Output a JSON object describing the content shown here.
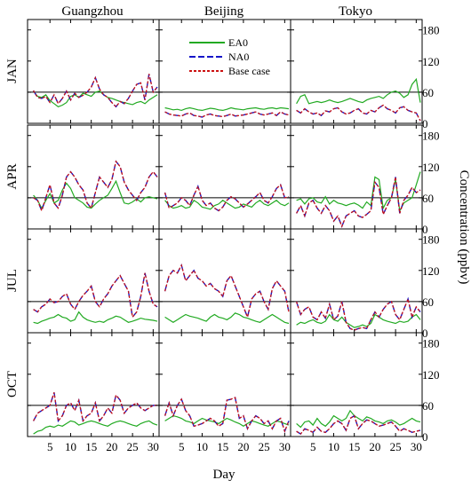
{
  "chart_data": {
    "type": "line",
    "columns": [
      "Guangzhou",
      "Beijing",
      "Tokyo"
    ],
    "rows": [
      "JAN",
      "APR",
      "JUL",
      "OCT"
    ],
    "xlabel": "Day",
    "ylabel": "Concentration (ppbv)",
    "xticks": [
      5,
      10,
      15,
      20,
      25,
      30
    ],
    "yticks": [
      0,
      60,
      120,
      180
    ],
    "xlim": [
      0,
      31
    ],
    "ylim": [
      0,
      200
    ],
    "reference_line": 60,
    "legend": {
      "placement": "top, in JAN–Beijing panel",
      "entries": [
        "EA0",
        "NA0",
        "Base case"
      ]
    },
    "series_styles": [
      {
        "name": "EA0",
        "color": "#22aa22",
        "dash": ""
      },
      {
        "name": "NA0",
        "color": "#1515c8",
        "dash": "7,3"
      },
      {
        "name": "Base case",
        "color": "#cc1111",
        "dash": "3,2"
      }
    ],
    "panels": [
      {
        "row": "JAN",
        "col": "Guangzhou",
        "ea0": [
          62,
          52,
          50,
          55,
          44,
          38,
          32,
          35,
          40,
          52,
          55,
          50,
          58,
          55,
          52,
          60,
          62,
          55,
          50,
          48,
          45,
          42,
          40,
          38,
          36,
          40,
          42,
          38,
          45,
          50,
          55
        ],
        "base": [
          63,
          50,
          48,
          52,
          40,
          55,
          38,
          48,
          62,
          45,
          58,
          50,
          54,
          60,
          70,
          88,
          66,
          55,
          50,
          40,
          32,
          42,
          38,
          48,
          62,
          75,
          78,
          45,
          95,
          60,
          70
        ]
      },
      {
        "row": "JAN",
        "col": "Beijing",
        "ea0": [
          30,
          28,
          26,
          27,
          25,
          28,
          30,
          28,
          26,
          25,
          27,
          29,
          28,
          26,
          25,
          27,
          30,
          28,
          27,
          26,
          28,
          29,
          30,
          28,
          27,
          29,
          30,
          28,
          30,
          29,
          28
        ],
        "base": [
          22,
          18,
          16,
          15,
          14,
          18,
          20,
          15,
          14,
          12,
          16,
          18,
          15,
          14,
          13,
          15,
          18,
          14,
          15,
          16,
          18,
          20,
          22,
          18,
          16,
          18,
          20,
          15,
          22,
          18,
          16
        ]
      },
      {
        "row": "JAN",
        "col": "Tokyo",
        "ea0": [
          38,
          52,
          55,
          38,
          40,
          42,
          40,
          42,
          45,
          42,
          40,
          42,
          45,
          48,
          45,
          42,
          40,
          45,
          48,
          50,
          52,
          48,
          55,
          60,
          62,
          58,
          50,
          55,
          75,
          85,
          40
        ],
        "base": [
          25,
          20,
          28,
          22,
          18,
          20,
          15,
          24,
          22,
          28,
          30,
          22,
          18,
          20,
          25,
          28,
          20,
          18,
          25,
          22,
          30,
          35,
          28,
          25,
          20,
          30,
          32,
          25,
          22,
          20,
          5
        ]
      },
      {
        "row": "APR",
        "col": "Guangzhou",
        "ea0": [
          65,
          55,
          40,
          55,
          68,
          50,
          55,
          75,
          88,
          78,
          60,
          55,
          50,
          42,
          40,
          48,
          55,
          60,
          65,
          78,
          92,
          70,
          50,
          48,
          52,
          58,
          52,
          60,
          62,
          60,
          58
        ],
        "base": [
          60,
          55,
          35,
          60,
          85,
          50,
          40,
          65,
          100,
          110,
          100,
          85,
          75,
          50,
          40,
          70,
          100,
          90,
          80,
          95,
          130,
          120,
          90,
          75,
          65,
          55,
          70,
          80,
          100,
          110,
          100
        ]
      },
      {
        "row": "APR",
        "col": "Beijing",
        "ea0": [
          55,
          45,
          40,
          42,
          45,
          40,
          42,
          55,
          50,
          42,
          40,
          38,
          45,
          48,
          55,
          50,
          45,
          40,
          42,
          48,
          45,
          42,
          50,
          55,
          48,
          45,
          50,
          55,
          48,
          45,
          50
        ],
        "base": [
          70,
          40,
          45,
          50,
          60,
          55,
          45,
          65,
          82,
          55,
          45,
          50,
          40,
          35,
          42,
          55,
          62,
          58,
          50,
          42,
          48,
          55,
          62,
          70,
          55,
          50,
          62,
          78,
          85,
          60,
          62
        ]
      },
      {
        "row": "APR",
        "col": "Tokyo",
        "ea0": [
          55,
          58,
          48,
          58,
          60,
          52,
          50,
          62,
          48,
          55,
          50,
          48,
          45,
          48,
          50,
          46,
          40,
          52,
          45,
          100,
          95,
          40,
          55,
          60,
          95,
          35,
          50,
          55,
          60,
          85,
          110
        ],
        "base": [
          30,
          45,
          25,
          50,
          55,
          40,
          30,
          45,
          35,
          15,
          25,
          5,
          25,
          30,
          35,
          25,
          22,
          28,
          35,
          90,
          80,
          28,
          45,
          60,
          100,
          30,
          55,
          65,
          80,
          70,
          75
        ]
      },
      {
        "row": "JUL",
        "col": "Guangzhou",
        "ea0": [
          20,
          18,
          22,
          25,
          28,
          30,
          35,
          30,
          28,
          22,
          25,
          40,
          30,
          25,
          22,
          20,
          22,
          20,
          25,
          28,
          32,
          30,
          25,
          20,
          22,
          25,
          28,
          26,
          25,
          24,
          22
        ],
        "base": [
          45,
          40,
          50,
          55,
          65,
          58,
          60,
          70,
          75,
          55,
          45,
          60,
          72,
          80,
          90,
          60,
          50,
          65,
          75,
          90,
          100,
          110,
          95,
          80,
          30,
          40,
          70,
          115,
          80,
          55,
          50
        ]
      },
      {
        "row": "JUL",
        "col": "Beijing",
        "ea0": [
          30,
          25,
          20,
          25,
          30,
          35,
          32,
          30,
          28,
          25,
          22,
          30,
          35,
          30,
          28,
          25,
          30,
          38,
          35,
          30,
          28,
          25,
          22,
          20,
          25,
          30,
          35,
          30,
          25,
          20,
          18
        ],
        "base": [
          80,
          110,
          120,
          115,
          130,
          100,
          110,
          120,
          105,
          100,
          90,
          95,
          85,
          80,
          70,
          100,
          110,
          90,
          70,
          50,
          30,
          65,
          75,
          80,
          60,
          45,
          85,
          100,
          90,
          80,
          40
        ]
      },
      {
        "row": "JUL",
        "col": "Tokyo",
        "ea0": [
          15,
          20,
          18,
          22,
          25,
          20,
          18,
          22,
          35,
          25,
          22,
          30,
          20,
          15,
          10,
          12,
          15,
          12,
          18,
          35,
          30,
          25,
          22,
          20,
          18,
          22,
          20,
          22,
          30,
          35,
          25
        ],
        "base": [
          60,
          35,
          45,
          50,
          30,
          25,
          40,
          28,
          55,
          25,
          32,
          60,
          20,
          8,
          5,
          8,
          10,
          8,
          25,
          40,
          30,
          45,
          55,
          60,
          35,
          25,
          45,
          65,
          30,
          50,
          40
        ]
      },
      {
        "row": "OCT",
        "col": "Guangzhou",
        "ea0": [
          5,
          10,
          12,
          18,
          20,
          18,
          22,
          20,
          25,
          30,
          28,
          22,
          25,
          28,
          30,
          28,
          25,
          22,
          20,
          25,
          28,
          30,
          28,
          25,
          22,
          20,
          25,
          28,
          30,
          25,
          22
        ],
        "base": [
          30,
          45,
          50,
          55,
          60,
          85,
          30,
          40,
          60,
          65,
          50,
          70,
          30,
          40,
          45,
          65,
          30,
          40,
          55,
          45,
          80,
          70,
          45,
          55,
          60,
          65,
          55,
          50,
          55,
          60,
          60
        ]
      },
      {
        "row": "OCT",
        "col": "Beijing",
        "ea0": [
          30,
          35,
          40,
          38,
          35,
          30,
          28,
          25,
          30,
          35,
          32,
          30,
          28,
          25,
          30,
          35,
          32,
          28,
          25,
          20,
          25,
          30,
          28,
          25,
          22,
          20,
          25,
          30,
          28,
          25,
          22
        ],
        "base": [
          40,
          65,
          40,
          60,
          72,
          50,
          40,
          20,
          22,
          25,
          30,
          35,
          30,
          20,
          25,
          70,
          72,
          75,
          35,
          40,
          15,
          30,
          40,
          35,
          25,
          30,
          15,
          30,
          35,
          10,
          30
        ]
      },
      {
        "row": "OCT",
        "col": "Tokyo",
        "ea0": [
          25,
          18,
          28,
          30,
          22,
          35,
          25,
          20,
          28,
          40,
          35,
          30,
          35,
          50,
          40,
          35,
          30,
          38,
          35,
          30,
          28,
          25,
          30,
          32,
          28,
          22,
          25,
          30,
          35,
          30,
          28
        ],
        "base": [
          10,
          5,
          15,
          12,
          8,
          18,
          10,
          8,
          15,
          25,
          30,
          25,
          12,
          35,
          40,
          15,
          25,
          32,
          30,
          25,
          20,
          22,
          25,
          28,
          20,
          10,
          15,
          12,
          8,
          10,
          12
        ]
      }
    ]
  }
}
